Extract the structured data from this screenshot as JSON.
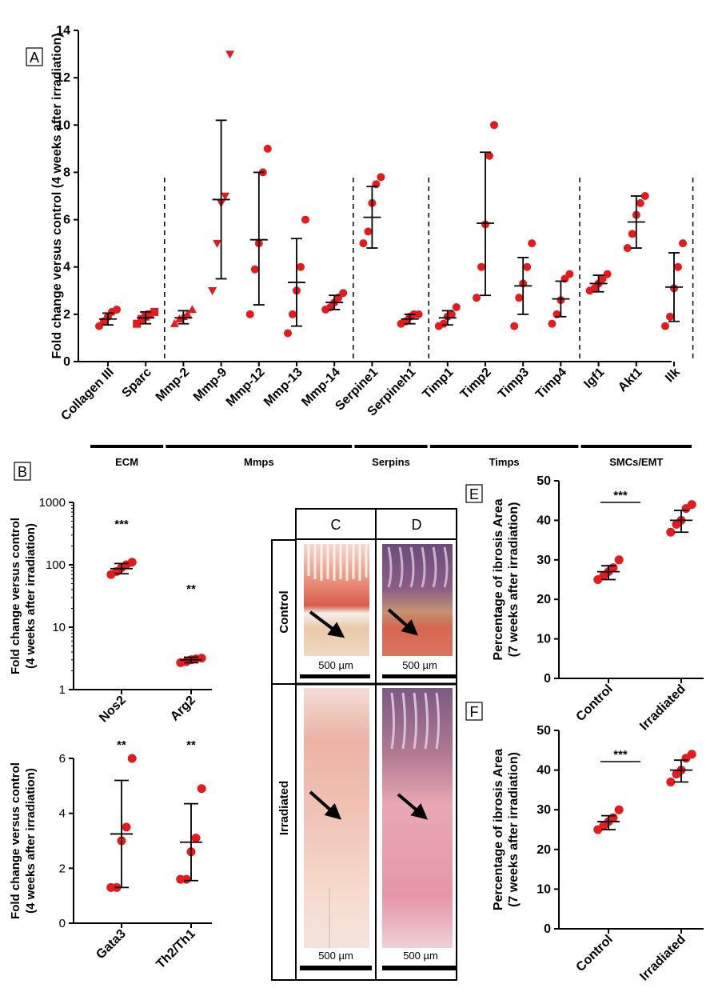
{
  "colors": {
    "point": "#e41a1c",
    "axis": "#000000",
    "scale_bar": "#000000"
  },
  "chart_data": [
    {
      "panel": "A",
      "type": "scatter",
      "ylabel": "Fold change versus control (4 weeks after irradiation)",
      "ylim": [
        0,
        14
      ],
      "yticks": [
        0,
        2,
        4,
        6,
        8,
        10,
        12,
        14
      ],
      "categories": [
        "Collagen III",
        "Sparc",
        "Mmp-2",
        "Mmp-9",
        "Mmp-12",
        "Mmp-13",
        "Mmp-14",
        "Serpine1",
        "Serpineh1",
        "Timp1",
        "Timp2",
        "Timp3",
        "Timp4",
        "Igf1",
        "Akt1",
        "Ilk"
      ],
      "markers": [
        "circle",
        "square",
        "triangle-up",
        "triangle-down",
        "circle",
        "circle",
        "circle",
        "circle",
        "circle",
        "circle",
        "circle",
        "circle",
        "circle",
        "circle",
        "circle",
        "circle"
      ],
      "points": [
        [
          1.5,
          1.7,
          1.9,
          2.1,
          2.2
        ],
        [
          1.6,
          1.8,
          1.9,
          2.0,
          2.1
        ],
        [
          1.6,
          1.8,
          1.9,
          2.0,
          2.2
        ],
        [
          3.0,
          5.0,
          6.7,
          7.0,
          13.0
        ],
        [
          2.0,
          3.9,
          5.0,
          8.0,
          9.0
        ],
        [
          1.2,
          2.0,
          3.0,
          4.0,
          6.0
        ],
        [
          2.2,
          2.3,
          2.5,
          2.7,
          2.9
        ],
        [
          5.0,
          5.5,
          6.7,
          7.5,
          7.8
        ],
        [
          1.6,
          1.7,
          1.9,
          2.0,
          2.0
        ],
        [
          1.5,
          1.6,
          1.9,
          2.0,
          2.3
        ],
        [
          2.7,
          4.0,
          5.8,
          8.7,
          10.0
        ],
        [
          1.5,
          2.7,
          3.3,
          4.0,
          5.0
        ],
        [
          1.6,
          2.0,
          2.6,
          3.5,
          3.7
        ],
        [
          3.0,
          3.1,
          3.3,
          3.5,
          3.7
        ],
        [
          4.8,
          5.4,
          6.2,
          6.7,
          7.0
        ],
        [
          1.5,
          1.9,
          3.1,
          4.0,
          5.0
        ]
      ],
      "mean": [
        1.8,
        1.85,
        1.85,
        6.85,
        5.15,
        3.35,
        2.5,
        6.1,
        1.8,
        1.85,
        5.85,
        3.2,
        2.65,
        3.3,
        5.9,
        3.15
      ],
      "sd_low": [
        1.55,
        1.6,
        1.6,
        3.5,
        2.4,
        1.5,
        2.2,
        4.8,
        1.6,
        1.55,
        2.8,
        2.0,
        1.9,
        2.95,
        4.8,
        1.7
      ],
      "sd_high": [
        2.05,
        2.1,
        2.15,
        10.2,
        8.0,
        5.2,
        2.8,
        7.4,
        2.0,
        2.15,
        8.85,
        4.4,
        3.4,
        3.65,
        7.0,
        4.6
      ],
      "groups": [
        {
          "name": "ECM",
          "from": 0,
          "to": 1
        },
        {
          "name": "Mmps",
          "from": 2,
          "to": 6
        },
        {
          "name": "Serpins",
          "from": 7,
          "to": 8
        },
        {
          "name": "Timps",
          "from": 9,
          "to": 12
        },
        {
          "name": "SMCs/EMT",
          "from": 13,
          "to": 15
        }
      ],
      "dividers_after": [
        1,
        6,
        8,
        12,
        15
      ]
    },
    {
      "panel": "B-top",
      "type": "scatter",
      "yscale": "log",
      "ylabel": "Fold change versus control",
      "ylabel2": "(4 weeks after irradiation)",
      "ylim": [
        1,
        1000
      ],
      "yticks": [
        1,
        10,
        100,
        1000
      ],
      "categories": [
        "Nos2",
        "Arg2"
      ],
      "points": [
        [
          70,
          78,
          90,
          100,
          110
        ],
        [
          2.7,
          2.8,
          3.0,
          3.1,
          3.2
        ]
      ],
      "mean": [
        87,
        3.0
      ],
      "sd_low": [
        72,
        2.7
      ],
      "sd_high": [
        105,
        3.3
      ],
      "significance": [
        "***",
        "**"
      ]
    },
    {
      "panel": "B-bottom",
      "type": "scatter",
      "ylabel": "Fold change versus control",
      "ylabel2": "(4 weeks after irradiation)",
      "ylim": [
        0,
        6
      ],
      "yticks": [
        0,
        2,
        4,
        6
      ],
      "categories": [
        "Gata3",
        "Th2/Th1"
      ],
      "points": [
        [
          1.3,
          1.3,
          3.0,
          3.5,
          6.0
        ],
        [
          1.6,
          1.6,
          2.6,
          3.1,
          4.9
        ]
      ],
      "mean": [
        3.25,
        2.95
      ],
      "sd_low": [
        1.3,
        1.55
      ],
      "sd_high": [
        5.2,
        4.35
      ],
      "significance": [
        "**",
        "**"
      ]
    },
    {
      "panel": "E",
      "type": "scatter",
      "ylabel": "Percentage of ibrosis Area",
      "ylabel2": "(7 weeks after irradiation)",
      "ylim": [
        0,
        50
      ],
      "yticks": [
        0,
        10,
        20,
        30,
        40,
        50
      ],
      "categories": [
        "Control",
        "Irradiated"
      ],
      "points": [
        [
          25,
          26,
          27,
          28,
          30
        ],
        [
          37,
          39,
          40,
          43,
          44
        ]
      ],
      "mean": [
        27,
        40
      ],
      "sd_low": [
        25,
        37
      ],
      "sd_high": [
        28.5,
        42.5
      ],
      "significance": "***"
    },
    {
      "panel": "F",
      "type": "scatter",
      "ylabel": "Percentage of ibrosis Area",
      "ylabel2": "(7 weeks after irradiation)",
      "ylim": [
        0,
        50
      ],
      "yticks": [
        0,
        10,
        20,
        30,
        40,
        50
      ],
      "categories": [
        "Control",
        "Irradiated"
      ],
      "points": [
        [
          25,
          26,
          27,
          28,
          30
        ],
        [
          37,
          39,
          40,
          43,
          44
        ]
      ],
      "mean": [
        27,
        40
      ],
      "sd_low": [
        25,
        37
      ],
      "sd_high": [
        28.5,
        42.5
      ],
      "significance": "***"
    }
  ],
  "panels": {
    "a": "A",
    "b": "B",
    "c": "C",
    "d": "D",
    "e": "E",
    "f": "F"
  },
  "histology": {
    "row_control": "Control",
    "row_irradiated": "Irradiated",
    "scale_label": "500 µm"
  }
}
